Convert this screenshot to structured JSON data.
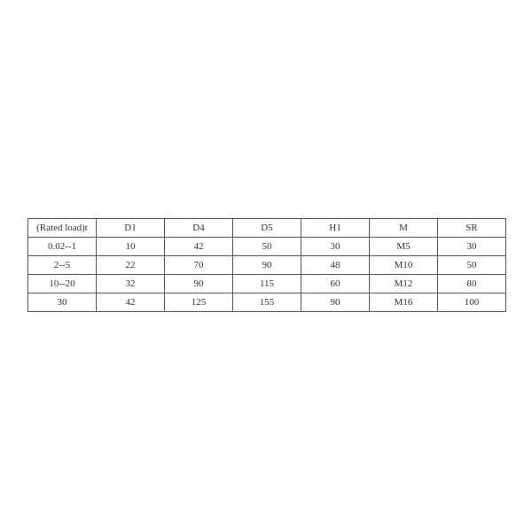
{
  "table": {
    "headers": [
      "(Rated load)t",
      "D1",
      "D4",
      "D5",
      "H1",
      "M",
      "SR"
    ],
    "rows": [
      [
        "0.02--1",
        "10",
        "42",
        "50",
        "30",
        "M5",
        "30"
      ],
      [
        "2--5",
        "22",
        "70",
        "90",
        "48",
        "M10",
        "50"
      ],
      [
        "10--20",
        "32",
        "90",
        "115",
        "60",
        "M12",
        "80"
      ],
      [
        "30",
        "42",
        "125",
        "155",
        "90",
        "M16",
        "100"
      ]
    ]
  }
}
